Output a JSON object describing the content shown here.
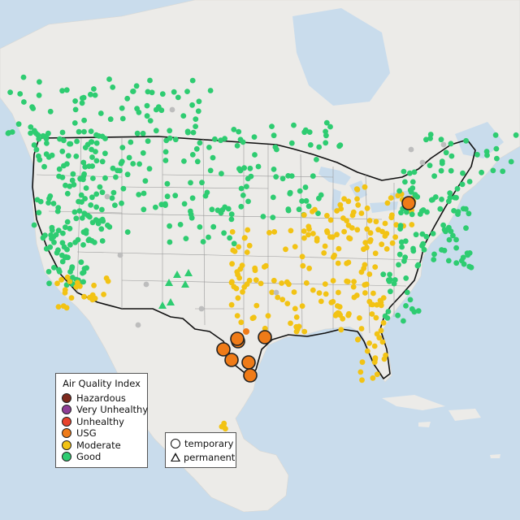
{
  "legend": {
    "title": "Air Quality Index",
    "categories": [
      {
        "label": "Hazardous",
        "color": "#7e2a1e"
      },
      {
        "label": "Very Unhealthy",
        "color": "#8f3f97"
      },
      {
        "label": "Unhealthy",
        "color": "#e8432c"
      },
      {
        "label": "USG",
        "color": "#ef7b18"
      },
      {
        "label": "Moderate",
        "color": "#f2c314"
      },
      {
        "label": "Good",
        "color": "#2ecc71"
      }
    ],
    "no_data_color": "#bdbdbd"
  },
  "shape_legend": {
    "items": [
      {
        "label": "temporary",
        "shape": "circle"
      },
      {
        "label": "permanent",
        "shape": "triangle"
      }
    ]
  },
  "map": {
    "land_color": "#ecebe8",
    "water_color": "#c9dcec",
    "highlighted_sites_category": "USG"
  }
}
